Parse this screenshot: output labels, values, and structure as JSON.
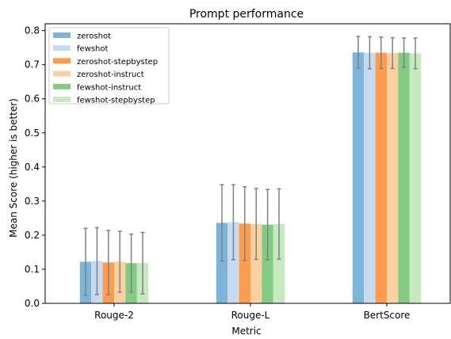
{
  "chart_data": {
    "type": "bar",
    "title": "Prompt performance",
    "xlabel": "Metric",
    "ylabel": "Mean Score (higher is better)",
    "ylim": [
      0,
      0.82
    ],
    "yticks": [
      0.0,
      0.1,
      0.2,
      0.3,
      0.4,
      0.5,
      0.6,
      0.7,
      0.8
    ],
    "ytick_labels": [
      "0.0",
      "0.1",
      "0.2",
      "0.3",
      "0.4",
      "0.5",
      "0.6",
      "0.7",
      "0.8"
    ],
    "categories": [
      "Rouge-2",
      "Rouge-L",
      "BertScore"
    ],
    "legend_position": "top-left",
    "grid": false,
    "error_bar_color": "#808080",
    "series": [
      {
        "name": "zeroshot",
        "color": "#7db4da",
        "values": [
          0.122,
          0.236,
          0.736
        ],
        "errors": [
          0.098,
          0.112,
          0.047
        ]
      },
      {
        "name": "fewshot",
        "color": "#c6dbef",
        "values": [
          0.124,
          0.238,
          0.735
        ],
        "errors": [
          0.098,
          0.11,
          0.047
        ]
      },
      {
        "name": "zeroshot-stepbystep",
        "color": "#fd9b4f",
        "values": [
          0.12,
          0.234,
          0.735
        ],
        "errors": [
          0.094,
          0.108,
          0.046
        ]
      },
      {
        "name": "zeroshot-instruct",
        "color": "#fdd0a2",
        "values": [
          0.122,
          0.233,
          0.734
        ],
        "errors": [
          0.089,
          0.104,
          0.045
        ]
      },
      {
        "name": "fewshot-instruct",
        "color": "#83cb82",
        "values": [
          0.118,
          0.231,
          0.735
        ],
        "errors": [
          0.085,
          0.103,
          0.043
        ]
      },
      {
        "name": "fewshot-stepbystep",
        "color": "#c7e9c0",
        "values": [
          0.118,
          0.233,
          0.733
        ],
        "errors": [
          0.09,
          0.103,
          0.045
        ]
      }
    ]
  }
}
